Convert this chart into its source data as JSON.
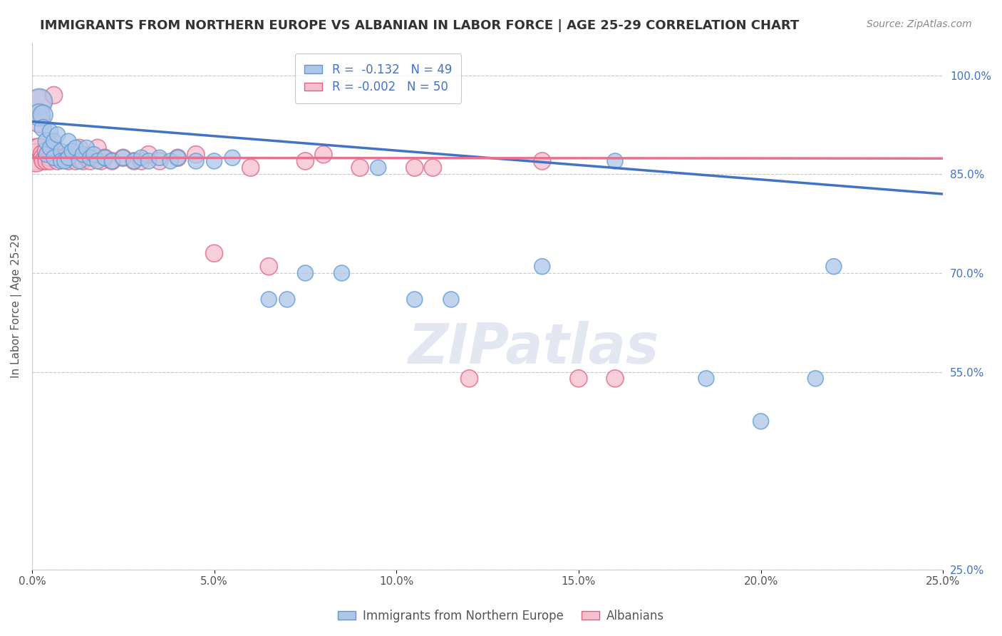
{
  "title": "IMMIGRANTS FROM NORTHERN EUROPE VS ALBANIAN IN LABOR FORCE | AGE 25-29 CORRELATION CHART",
  "source": "Source: ZipAtlas.com",
  "ylabel": "In Labor Force | Age 25-29",
  "xlim": [
    0.0,
    0.25
  ],
  "ylim": [
    0.25,
    1.05
  ],
  "xtick_labels": [
    "0.0%",
    "5.0%",
    "10.0%",
    "15.0%",
    "20.0%",
    "25.0%"
  ],
  "xtick_vals": [
    0.0,
    0.05,
    0.1,
    0.15,
    0.2,
    0.25
  ],
  "ytick_labels": [
    "100.0%",
    "85.0%",
    "70.0%",
    "55.0%",
    "25.0%"
  ],
  "ytick_vals": [
    1.0,
    0.85,
    0.7,
    0.55,
    0.25
  ],
  "legend_blue_label": "Immigrants from Northern Europe",
  "legend_pink_label": "Albanians",
  "R_blue": -0.132,
  "N_blue": 49,
  "R_pink": -0.002,
  "N_pink": 50,
  "blue_color": "#aec6e8",
  "blue_edge": "#5b9bd5",
  "pink_color": "#f5c0ce",
  "pink_edge": "#e06080",
  "blue_line_color": "#4472C4",
  "pink_line_color": "#e87090",
  "grid_color": "#c8c8c8",
  "background_color": "#ffffff",
  "blue_line_x0": 0.0,
  "blue_line_y0": 0.93,
  "blue_line_x1": 0.25,
  "blue_line_y1": 0.82,
  "pink_line_x0": 0.0,
  "pink_line_y0": 0.875,
  "pink_line_x1": 0.25,
  "pink_line_y1": 0.874,
  "blue_scatter_x": [
    0.002,
    0.002,
    0.003,
    0.003,
    0.004,
    0.004,
    0.005,
    0.005,
    0.006,
    0.006,
    0.007,
    0.008,
    0.008,
    0.009,
    0.01,
    0.01,
    0.011,
    0.012,
    0.013,
    0.014,
    0.015,
    0.016,
    0.017,
    0.018,
    0.02,
    0.022,
    0.025,
    0.028,
    0.03,
    0.032,
    0.035,
    0.038,
    0.04,
    0.045,
    0.05,
    0.055,
    0.065,
    0.07,
    0.075,
    0.085,
    0.095,
    0.105,
    0.115,
    0.14,
    0.16,
    0.185,
    0.2,
    0.215,
    0.22
  ],
  "blue_scatter_y": [
    0.96,
    0.94,
    0.94,
    0.92,
    0.9,
    0.88,
    0.915,
    0.89,
    0.9,
    0.875,
    0.91,
    0.885,
    0.87,
    0.87,
    0.9,
    0.875,
    0.885,
    0.89,
    0.87,
    0.88,
    0.89,
    0.875,
    0.88,
    0.87,
    0.875,
    0.87,
    0.875,
    0.87,
    0.875,
    0.87,
    0.875,
    0.87,
    0.875,
    0.87,
    0.87,
    0.875,
    0.66,
    0.66,
    0.7,
    0.7,
    0.86,
    0.66,
    0.66,
    0.71,
    0.87,
    0.54,
    0.475,
    0.54,
    0.71
  ],
  "blue_scatter_size": [
    700,
    500,
    400,
    300,
    300,
    250,
    250,
    250,
    250,
    250,
    250,
    250,
    250,
    250,
    250,
    250,
    250,
    250,
    250,
    250,
    250,
    250,
    250,
    250,
    250,
    250,
    250,
    250,
    250,
    250,
    250,
    250,
    250,
    250,
    250,
    250,
    250,
    250,
    250,
    250,
    250,
    250,
    250,
    250,
    250,
    250,
    250,
    250,
    250
  ],
  "pink_scatter_x": [
    0.001,
    0.001,
    0.002,
    0.002,
    0.002,
    0.003,
    0.003,
    0.003,
    0.004,
    0.004,
    0.004,
    0.005,
    0.005,
    0.006,
    0.006,
    0.007,
    0.007,
    0.008,
    0.009,
    0.01,
    0.011,
    0.012,
    0.013,
    0.014,
    0.015,
    0.016,
    0.017,
    0.018,
    0.019,
    0.02,
    0.022,
    0.025,
    0.028,
    0.03,
    0.032,
    0.035,
    0.04,
    0.045,
    0.05,
    0.06,
    0.065,
    0.075,
    0.08,
    0.09,
    0.105,
    0.11,
    0.12,
    0.14,
    0.15,
    0.16
  ],
  "pink_scatter_y": [
    0.88,
    0.875,
    0.96,
    0.93,
    0.89,
    0.88,
    0.875,
    0.87,
    0.885,
    0.875,
    0.87,
    0.875,
    0.87,
    0.97,
    0.89,
    0.875,
    0.87,
    0.875,
    0.875,
    0.87,
    0.875,
    0.87,
    0.89,
    0.87,
    0.875,
    0.87,
    0.875,
    0.89,
    0.87,
    0.875,
    0.87,
    0.875,
    0.87,
    0.87,
    0.88,
    0.87,
    0.875,
    0.88,
    0.73,
    0.86,
    0.71,
    0.87,
    0.88,
    0.86,
    0.86,
    0.86,
    0.54,
    0.87,
    0.54,
    0.54
  ],
  "pink_scatter_size": [
    1000,
    800,
    600,
    500,
    400,
    400,
    350,
    300,
    350,
    300,
    300,
    300,
    300,
    300,
    300,
    300,
    300,
    300,
    300,
    300,
    300,
    300,
    300,
    300,
    300,
    300,
    300,
    300,
    300,
    300,
    300,
    300,
    300,
    300,
    300,
    300,
    300,
    300,
    300,
    300,
    300,
    300,
    300,
    300,
    300,
    300,
    300,
    300,
    300,
    300
  ]
}
